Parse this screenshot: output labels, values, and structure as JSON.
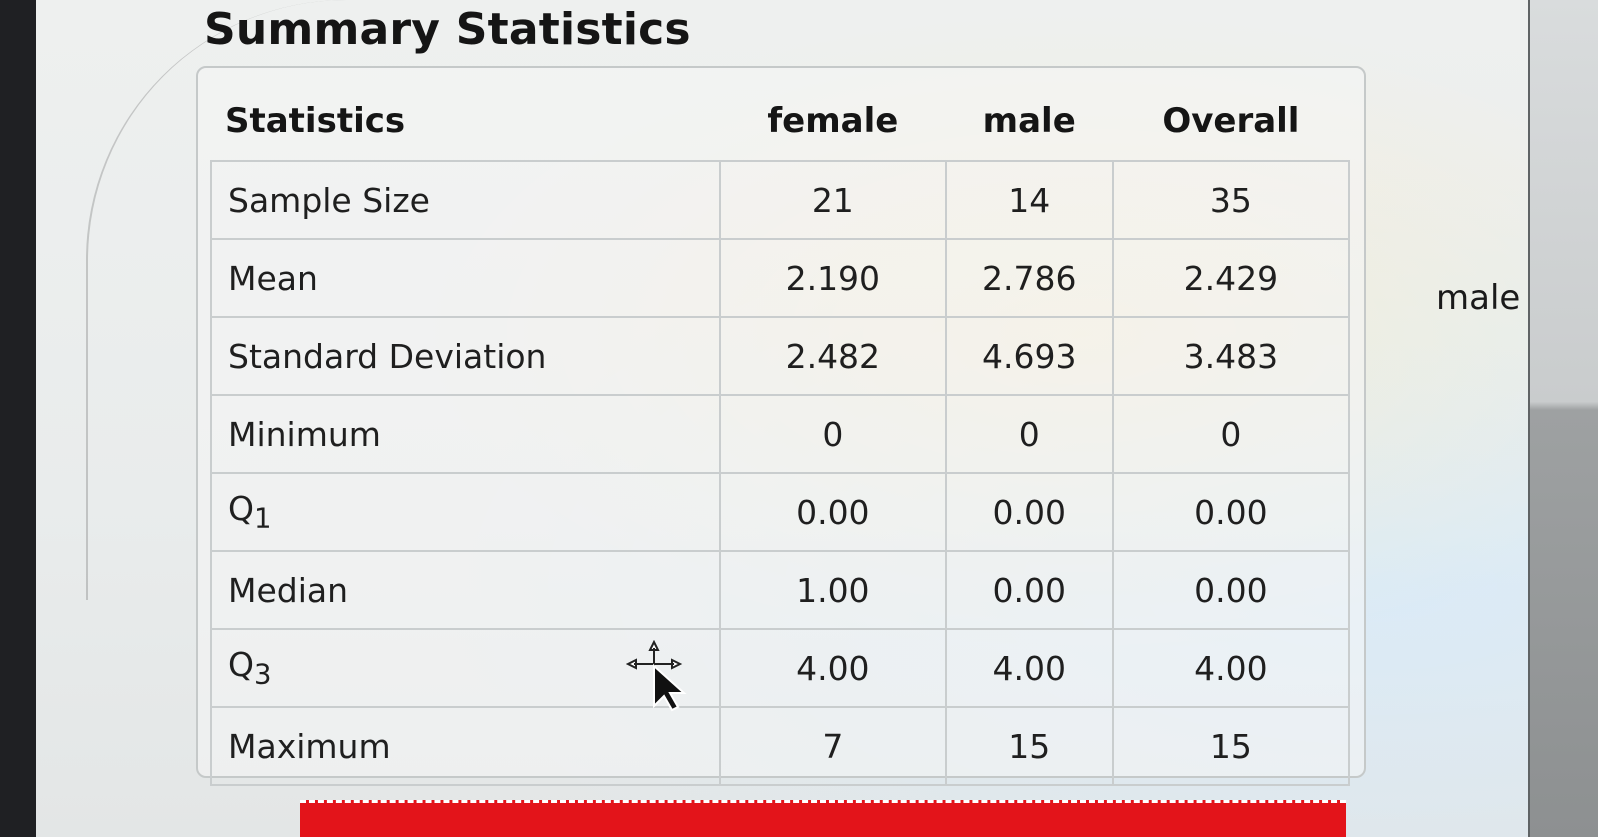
{
  "page": {
    "title": "Summary Statistics",
    "side_label": "male"
  },
  "table": {
    "headers": [
      "Statistics",
      "female",
      "male",
      "Overall"
    ],
    "rows": [
      {
        "label": "Sample Size",
        "female": "21",
        "male": "14",
        "overall": "35"
      },
      {
        "label": "Mean",
        "female": "2.190",
        "male": "2.786",
        "overall": "2.429"
      },
      {
        "label": "Standard Deviation",
        "female": "2.482",
        "male": "4.693",
        "overall": "3.483"
      },
      {
        "label": "Minimum",
        "female": "0",
        "male": "0",
        "overall": "0"
      },
      {
        "label": "Q",
        "sub": "1",
        "female": "0.00",
        "male": "0.00",
        "overall": "0.00"
      },
      {
        "label": "Median",
        "female": "1.00",
        "male": "0.00",
        "overall": "0.00"
      },
      {
        "label": "Q",
        "sub": "3",
        "female": "4.00",
        "male": "4.00",
        "overall": "4.00"
      },
      {
        "label": "Maximum",
        "female": "7",
        "male": "15",
        "overall": "15"
      }
    ]
  },
  "colors": {
    "bar": "#e3141a",
    "grid": "#c9cdce",
    "text": "#1a1a1a"
  },
  "icons": {
    "cursor": "move-cursor-icon"
  }
}
